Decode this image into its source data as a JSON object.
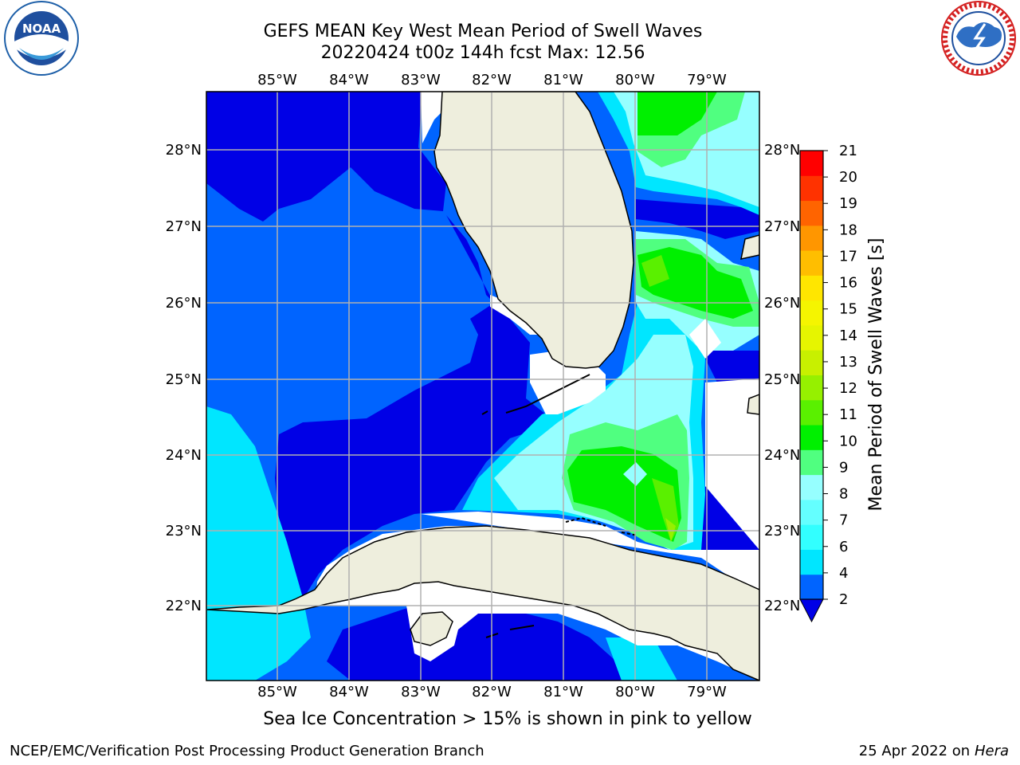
{
  "header": {
    "title_line1": "GEFS MEAN Key West Mean Period of Swell Waves",
    "title_line2": "20220424 t00z 144h fcst   Max: 12.56"
  },
  "logos": {
    "left": {
      "name": "noaa-logo",
      "text": "NOAA",
      "ring_text": "NATIONAL OCEANIC AND ATMOSPHERIC ADMINISTRATION · U.S. DEPARTMENT OF COMMERCE"
    },
    "right": {
      "name": "nws-logo",
      "ring_text": "NATIONAL WEATHER SERVICE"
    }
  },
  "map": {
    "lon_labels": [
      "85°W",
      "84°W",
      "83°W",
      "82°W",
      "81°W",
      "80°W",
      "79°W"
    ],
    "lat_labels": [
      "28°N",
      "27°N",
      "26°N",
      "25°N",
      "24°N",
      "23°N",
      "22°N"
    ],
    "lon_range": [
      -86.0,
      -78.25
    ],
    "lat_range": [
      21.0,
      28.75
    ],
    "land_color": "#eeeedd",
    "grid_color": "#b0b0b0"
  },
  "colorbar": {
    "label": "Mean Period of Swell Waves [s]",
    "ticks": [
      "2",
      "4",
      "6",
      "7",
      "8",
      "9",
      "10",
      "11",
      "12",
      "13",
      "14",
      "15",
      "16",
      "17",
      "18",
      "19",
      "20",
      "21"
    ],
    "colors": [
      "#0064ff",
      "#00e6ff",
      "#32ffff",
      "#64ffff",
      "#96ffff",
      "#50ff80",
      "#00f000",
      "#5af000",
      "#96f000",
      "#c8f000",
      "#e6f500",
      "#f5f500",
      "#ffe600",
      "#ffbe00",
      "#ff9600",
      "#ff6400",
      "#ff3200",
      "#ff0000"
    ],
    "extend_color": "#0000e6"
  },
  "chart_data": {
    "type": "heatmap",
    "title": "GEFS MEAN Key West Mean Period of Swell Waves",
    "subtitle": "20220424 t00z 144h fcst   Max: 12.56",
    "max": 12.56,
    "colorbar_label": "Mean Period of Swell Waves [s]",
    "colorbar_range": [
      2,
      21
    ],
    "legend": "right"
  },
  "footer": {
    "ice_note": "Sea Ice Concentration > 15% is shown in pink to yellow",
    "left": "NCEP/EMC/Verification Post Processing Product Generation Branch",
    "right_date": "25 Apr 2022 on ",
    "right_host": "Hera"
  }
}
